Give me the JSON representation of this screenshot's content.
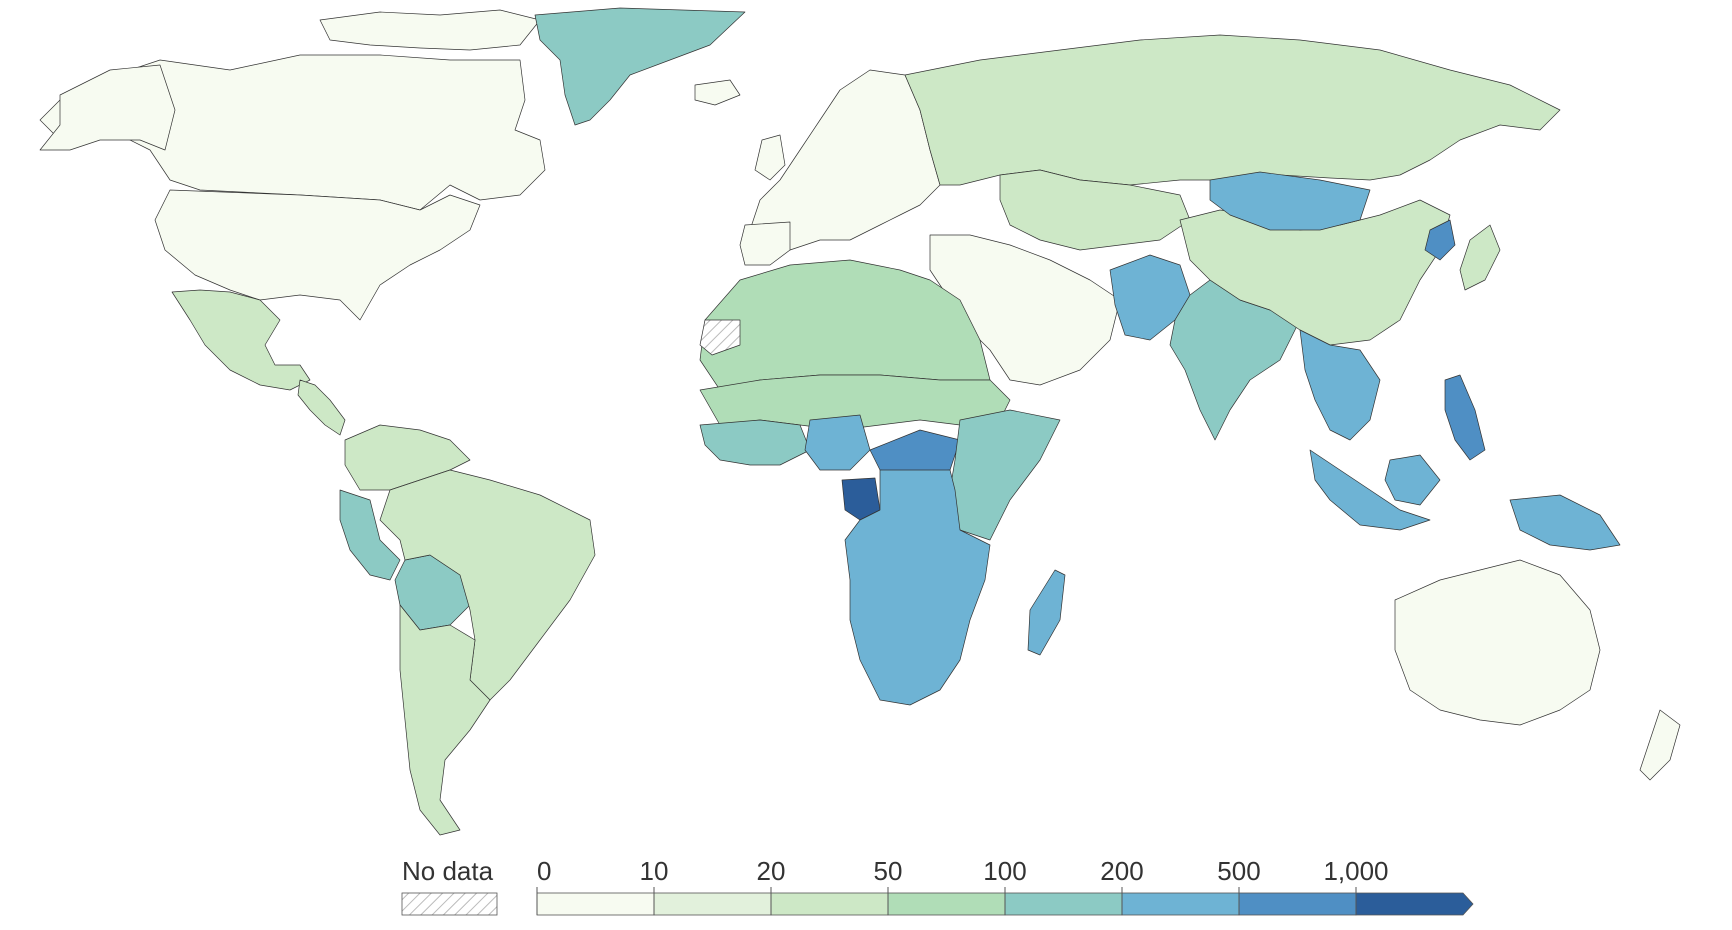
{
  "map": {
    "type": "choropleth",
    "projection": "world",
    "colors": {
      "c0": "#f7fbf1",
      "c10": "#e2f1dc",
      "c20": "#cde8c6",
      "c50": "#b0ddb7",
      "c100": "#8ccac4",
      "c200": "#6eb3d4",
      "c500": "#4f8fc4",
      "c1000": "#2b5d9a"
    },
    "country_values": {
      "north_america": "0-10",
      "greenland": "100-200",
      "mexico_central_america": "20-50",
      "brazil_argentina": "20-50",
      "peru_bolivia": "100-200",
      "europe": "0-10",
      "russia_kazakhstan": "20-50",
      "north_africa": "50-100",
      "sahel": "50-100",
      "west_africa_coast": "100-200",
      "nigeria": "200-500",
      "central_african_republic": "500-1000",
      "gabon": "1000+",
      "southern_africa": "200-500",
      "east_africa": "100-200",
      "madagascar": "200-500",
      "middle_east": "0-10",
      "india": "100-200",
      "pakistan": "200-500",
      "china": "20-50",
      "mongolia": "200-500",
      "north_korea": "500-1000",
      "southeast_asia": "200-500",
      "philippines": "500-1000",
      "indonesia_png": "200-500",
      "australia": "0-10"
    }
  },
  "legend": {
    "no_data_label": "No data",
    "ticks": [
      "0",
      "10",
      "20",
      "50",
      "100",
      "200",
      "500",
      "1,000"
    ],
    "bins": [
      {
        "color": "#f7fbf1"
      },
      {
        "color": "#e2f1dc"
      },
      {
        "color": "#cde8c6"
      },
      {
        "color": "#b0ddb7"
      },
      {
        "color": "#8ccac4"
      },
      {
        "color": "#6eb3d4"
      },
      {
        "color": "#4f8fc4"
      },
      {
        "color": "#2b5d9a"
      }
    ]
  }
}
